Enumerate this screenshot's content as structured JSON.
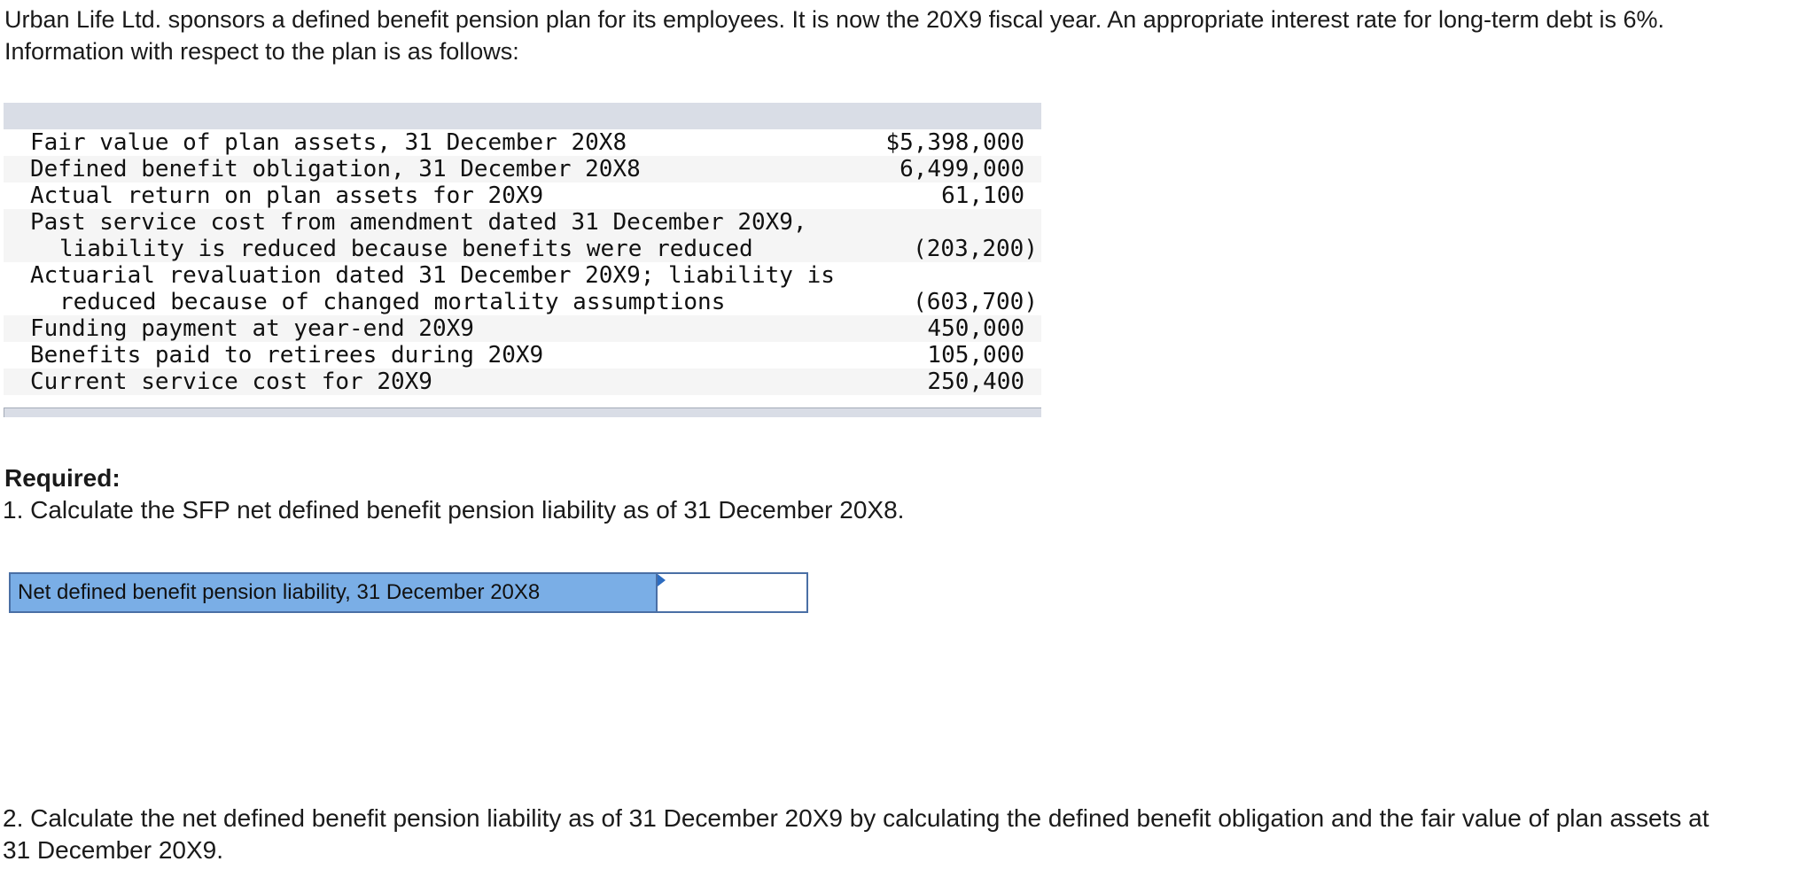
{
  "intro": {
    "text": "Urban Life Ltd. sponsors a defined benefit pension plan for its employees. It is now the 20X9 fiscal year. An appropriate interest rate for long-term debt is 6%. Information with respect to the plan is as follows:"
  },
  "table": {
    "rows": [
      {
        "label": "Fair value of plan assets, 31 December 20X8",
        "value": "$5,398,000"
      },
      {
        "label": "Defined benefit obligation, 31 December 20X8",
        "value": "6,499,000"
      },
      {
        "label": "Actual return on plan assets for 20X9",
        "value": "61,100"
      },
      {
        "label": "Past service cost from amendment dated 31 December 20X9,",
        "label2": "liability is reduced because benefits were reduced",
        "value": "(203,200)"
      },
      {
        "label": "Actuarial revaluation dated 31 December 20X9; liability is",
        "label2": "reduced because of changed mortality assumptions",
        "value": "(603,700)"
      },
      {
        "label": "Funding payment at year-end 20X9",
        "value": "450,000"
      },
      {
        "label": "Benefits paid to retirees during 20X9",
        "value": "105,000"
      },
      {
        "label": "Current service cost for 20X9",
        "value": "250,400"
      }
    ]
  },
  "required": {
    "heading": "Required:",
    "q1": "1. Calculate the SFP net defined benefit pension liability as of 31 December 20X8.",
    "q2": "2. Calculate the net defined benefit pension liability as of 31 December 20X9 by calculating the defined benefit obligation and the fair value of plan assets at 31 December 20X9."
  },
  "answer": {
    "label": "Net defined benefit pension liability, 31 December 20X8",
    "value": ""
  }
}
